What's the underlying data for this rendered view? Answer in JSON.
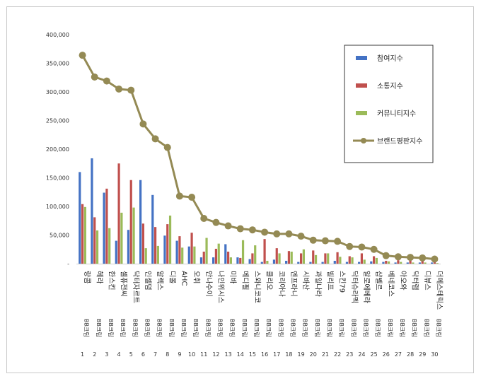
{
  "chart_data": {
    "type": "bar",
    "categories": [
      "랑콤",
      "헤라",
      "한스킨",
      "셀퓨전씨",
      "닥터자르트",
      "인셀덤",
      "알렉스",
      "디올",
      "AHC",
      "오휘",
      "안나수이",
      "나인위시스",
      "미바",
      "메디필",
      "스와니코코",
      "클리오",
      "코리아나",
      "엔프라니",
      "시바산",
      "과일나라",
      "빌리프",
      "스킨79",
      "닥터슈라멕",
      "알로에베라",
      "샵벨르",
      "베네코스",
      "아오와",
      "닥터랩",
      "디뷰스",
      "더메스테릭스"
    ],
    "subtitles": [
      "BB크림",
      "BB크림",
      "BB크림",
      "BB크림",
      "BB크림",
      "BB크림",
      "BB크림",
      "BB크림",
      "BB크림",
      "BB크림",
      "BB크림",
      "BB크림",
      "BB크림",
      "BB크림",
      "BB크림",
      "BB크림",
      "BB크림",
      "BB크림",
      "BB크림",
      "BB크림",
      "BB크림",
      "BB크림",
      "BB크림",
      "BB크림",
      "BB크림",
      "BB크림",
      "BB크림",
      "BB크림",
      "BB크림",
      "BB크림"
    ],
    "ranks": [
      "1",
      "2",
      "3",
      "4",
      "5",
      "6",
      "7",
      "8",
      "9",
      "10",
      "11",
      "12",
      "13",
      "14",
      "15",
      "16",
      "17",
      "18",
      "19",
      "20",
      "21",
      "22",
      "23",
      "24",
      "25",
      "26",
      "27",
      "28",
      "29",
      "30"
    ],
    "series": [
      {
        "name": "참여지수",
        "kind": "bar",
        "color": "#4472c4",
        "values": [
          160000,
          184000,
          124000,
          40000,
          59000,
          146000,
          120000,
          49000,
          40000,
          30000,
          11000,
          11000,
          34000,
          11000,
          8000,
          3000,
          7000,
          5000,
          3000,
          3000,
          3000,
          5000,
          3000,
          3000,
          4000,
          3000,
          2000,
          2000,
          2000,
          2000
        ]
      },
      {
        "name": "소통지수",
        "kind": "bar",
        "color": "#c0504d",
        "values": [
          104000,
          81000,
          131000,
          175000,
          146000,
          70000,
          64000,
          69000,
          48000,
          54000,
          21000,
          26000,
          21000,
          10000,
          18000,
          43000,
          27000,
          22000,
          18000,
          23000,
          18000,
          20000,
          13000,
          18000,
          13000,
          5000,
          6000,
          6000,
          5000,
          3000
        ]
      },
      {
        "name": "커뮤니티지수",
        "kind": "bar",
        "color": "#9bbb59",
        "values": [
          99000,
          58000,
          62000,
          89000,
          98000,
          27000,
          31000,
          84000,
          28000,
          30000,
          45000,
          35000,
          11000,
          41000,
          32000,
          5000,
          18000,
          21000,
          25000,
          15000,
          18000,
          12000,
          11000,
          7000,
          10000,
          4000,
          3000,
          2000,
          2000,
          1000
        ]
      },
      {
        "name": "브랜드평판지수",
        "kind": "line",
        "color": "#948a54",
        "values": [
          364000,
          326000,
          319000,
          305000,
          303000,
          244000,
          218000,
          203000,
          118000,
          116000,
          79000,
          72000,
          66000,
          61000,
          59000,
          55000,
          52000,
          52000,
          48000,
          41000,
          40000,
          39000,
          30000,
          29000,
          25000,
          14000,
          12000,
          11000,
          10000,
          8000
        ]
      }
    ],
    "yticks": [
      "-",
      "50,000",
      "100,000",
      "150,000",
      "200,000",
      "250,000",
      "300,000",
      "350,000",
      "400,000"
    ],
    "ylim": [
      0,
      400000
    ],
    "legend_position": "top-right",
    "grid": false
  }
}
